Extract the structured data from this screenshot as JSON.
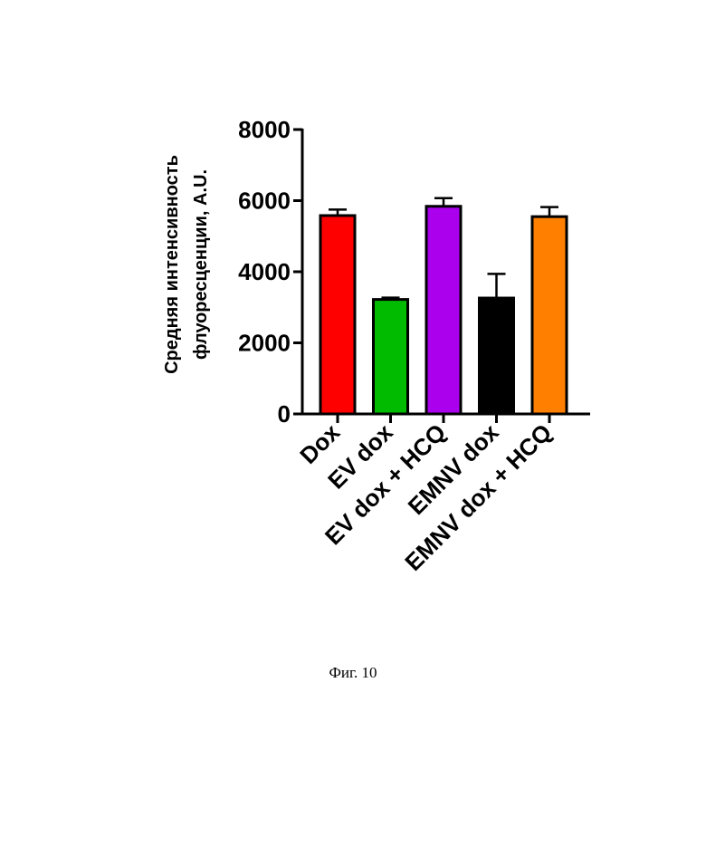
{
  "chart_data": {
    "type": "bar",
    "ylabel_line1": "Средняя интенсивность",
    "ylabel_line2": "флуоресценции, A.U.",
    "ylim": [
      0,
      8000
    ],
    "yticks": [
      "0",
      "2000",
      "4000",
      "6000",
      "8000"
    ],
    "categories": [
      "Dox",
      "EV dox",
      "EV dox + HCQ",
      "EMNV dox",
      "EMNV dox + HCQ"
    ],
    "values": [
      5580,
      3220,
      5840,
      3260,
      5550
    ],
    "errors": [
      170,
      50,
      230,
      680,
      270
    ],
    "colors": [
      "#ff0000",
      "#00bb00",
      "#aa00ee",
      "#000000",
      "#ff8000"
    ],
    "grid": false
  },
  "caption": "Фиг. 10"
}
